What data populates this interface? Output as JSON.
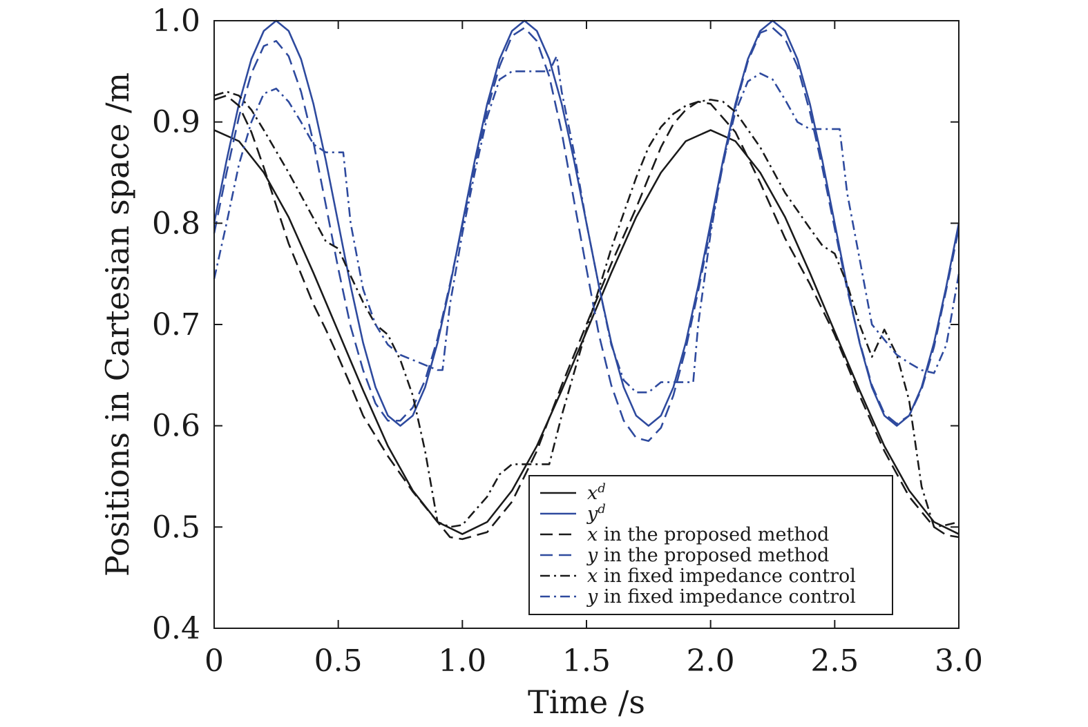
{
  "chart_data": {
    "type": "line",
    "xlabel": "Time /s",
    "ylabel": "Positions in Cartesian space /m",
    "xlim": [
      0,
      3.0
    ],
    "ylim": [
      0.4,
      1.0
    ],
    "x_ticks": [
      "0",
      "0.5",
      "1.0",
      "1.5",
      "2.0",
      "2.5",
      "3.0"
    ],
    "x_tick_values": [
      0,
      0.5,
      1.0,
      1.5,
      2.0,
      2.5,
      3.0
    ],
    "y_ticks": [
      "0.4",
      "0.5",
      "0.6",
      "0.7",
      "0.8",
      "0.9",
      "1.0"
    ],
    "y_tick_values": [
      0.4,
      0.5,
      0.6,
      0.7,
      0.8,
      0.9,
      1.0
    ],
    "grid": false,
    "legend_position": "bottom-right",
    "colors": {
      "black": "#1a1a1a",
      "blue": "#2e4a9e"
    },
    "series": [
      {
        "name": "x^d",
        "legend_var": "x",
        "legend_sup": "d",
        "legend_text": "",
        "color": "#1a1a1a",
        "style": "solid",
        "x": [
          0,
          0.1,
          0.2,
          0.3,
          0.4,
          0.5,
          0.6,
          0.7,
          0.8,
          0.9,
          1.0,
          1.1,
          1.2,
          1.3,
          1.4,
          1.5,
          1.6,
          1.7,
          1.8,
          1.9,
          2.0,
          2.1,
          2.2,
          2.3,
          2.4,
          2.5,
          2.6,
          2.7,
          2.8,
          2.9,
          3.0
        ],
        "y": [
          0.892,
          0.881,
          0.85,
          0.806,
          0.751,
          0.693,
          0.635,
          0.58,
          0.536,
          0.505,
          0.493,
          0.505,
          0.536,
          0.58,
          0.635,
          0.693,
          0.751,
          0.806,
          0.85,
          0.881,
          0.892,
          0.881,
          0.85,
          0.806,
          0.751,
          0.693,
          0.635,
          0.58,
          0.536,
          0.505,
          0.493
        ]
      },
      {
        "name": "y^d",
        "legend_var": "y",
        "legend_sup": "d",
        "legend_text": "",
        "color": "#2e4a9e",
        "style": "solid",
        "x": [
          0,
          0.05,
          0.1,
          0.15,
          0.2,
          0.25,
          0.3,
          0.35,
          0.4,
          0.45,
          0.5,
          0.55,
          0.6,
          0.65,
          0.7,
          0.75,
          0.8,
          0.85,
          0.9,
          0.95,
          1.0,
          1.05,
          1.1,
          1.15,
          1.2,
          1.25,
          1.3,
          1.35,
          1.4,
          1.45,
          1.5,
          1.55,
          1.6,
          1.65,
          1.7,
          1.75,
          1.8,
          1.85,
          1.9,
          1.95,
          2.0,
          2.05,
          2.1,
          2.15,
          2.2,
          2.25,
          2.3,
          2.35,
          2.4,
          2.45,
          2.5,
          2.55,
          2.6,
          2.65,
          2.7,
          2.75,
          2.8,
          2.85,
          2.9,
          2.95,
          3.0
        ],
        "y": [
          0.8,
          0.862,
          0.918,
          0.962,
          0.99,
          1.0,
          0.99,
          0.962,
          0.918,
          0.862,
          0.8,
          0.738,
          0.682,
          0.638,
          0.61,
          0.6,
          0.61,
          0.638,
          0.682,
          0.738,
          0.8,
          0.862,
          0.918,
          0.962,
          0.99,
          1.0,
          0.99,
          0.962,
          0.918,
          0.862,
          0.8,
          0.738,
          0.682,
          0.638,
          0.61,
          0.6,
          0.61,
          0.638,
          0.682,
          0.738,
          0.8,
          0.862,
          0.918,
          0.962,
          0.99,
          1.0,
          0.99,
          0.962,
          0.918,
          0.862,
          0.8,
          0.738,
          0.682,
          0.638,
          0.61,
          0.6,
          0.61,
          0.638,
          0.682,
          0.738,
          0.8
        ]
      },
      {
        "name": "x in the proposed method",
        "legend_var": "x",
        "legend_sup": "",
        "legend_text": " in the proposed method",
        "color": "#1a1a1a",
        "style": "dashed",
        "x": [
          0,
          0.05,
          0.1,
          0.15,
          0.2,
          0.3,
          0.4,
          0.45,
          0.5,
          0.55,
          0.6,
          0.7,
          0.8,
          0.9,
          0.95,
          1.0,
          1.1,
          1.2,
          1.3,
          1.4,
          1.5,
          1.6,
          1.7,
          1.75,
          1.8,
          1.85,
          1.9,
          1.95,
          2.0,
          2.1,
          2.2,
          2.3,
          2.4,
          2.5,
          2.6,
          2.7,
          2.8,
          2.9,
          2.95,
          3.0
        ],
        "y": [
          0.922,
          0.926,
          0.916,
          0.89,
          0.855,
          0.78,
          0.72,
          0.695,
          0.668,
          0.64,
          0.61,
          0.57,
          0.535,
          0.505,
          0.49,
          0.488,
          0.495,
          0.525,
          0.575,
          0.64,
          0.7,
          0.76,
          0.815,
          0.845,
          0.875,
          0.898,
          0.912,
          0.92,
          0.918,
          0.89,
          0.84,
          0.785,
          0.74,
          0.69,
          0.63,
          0.575,
          0.53,
          0.5,
          0.492,
          0.49
        ]
      },
      {
        "name": "y in the proposed method",
        "legend_var": "y",
        "legend_sup": "",
        "legend_text": " in the proposed method",
        "color": "#2e4a9e",
        "style": "dashed",
        "x": [
          0,
          0.05,
          0.1,
          0.15,
          0.2,
          0.25,
          0.3,
          0.35,
          0.4,
          0.45,
          0.5,
          0.55,
          0.6,
          0.65,
          0.7,
          0.75,
          0.8,
          0.85,
          0.9,
          0.95,
          1.0,
          1.05,
          1.1,
          1.15,
          1.2,
          1.25,
          1.3,
          1.35,
          1.4,
          1.45,
          1.5,
          1.55,
          1.6,
          1.65,
          1.7,
          1.75,
          1.8,
          1.85,
          1.9,
          1.95,
          2.0,
          2.05,
          2.1,
          2.15,
          2.2,
          2.25,
          2.3,
          2.35,
          2.4,
          2.45,
          2.5,
          2.55,
          2.6,
          2.65,
          2.7,
          2.75,
          2.8,
          2.85,
          2.9,
          2.95,
          3.0
        ],
        "y": [
          0.79,
          0.85,
          0.905,
          0.948,
          0.975,
          0.98,
          0.965,
          0.93,
          0.88,
          0.818,
          0.755,
          0.698,
          0.655,
          0.622,
          0.605,
          0.605,
          0.618,
          0.645,
          0.686,
          0.74,
          0.798,
          0.858,
          0.912,
          0.955,
          0.985,
          0.993,
          0.98,
          0.945,
          0.89,
          0.822,
          0.755,
          0.69,
          0.64,
          0.605,
          0.588,
          0.585,
          0.598,
          0.63,
          0.676,
          0.733,
          0.795,
          0.858,
          0.915,
          0.96,
          0.988,
          0.993,
          0.982,
          0.955,
          0.91,
          0.855,
          0.795,
          0.735,
          0.683,
          0.64,
          0.612,
          0.602,
          0.61,
          0.636,
          0.678,
          0.735,
          0.795
        ]
      },
      {
        "name": "x in fixed impedance control",
        "legend_var": "x",
        "legend_sup": "",
        "legend_text": " in fixed impedance control",
        "color": "#1a1a1a",
        "style": "dashdot",
        "x": [
          0,
          0.05,
          0.1,
          0.15,
          0.2,
          0.3,
          0.4,
          0.45,
          0.5,
          0.55,
          0.6,
          0.65,
          0.7,
          0.75,
          0.8,
          0.85,
          0.9,
          0.95,
          1.0,
          1.1,
          1.15,
          1.2,
          1.25,
          1.3,
          1.35,
          1.4,
          1.5,
          1.6,
          1.7,
          1.75,
          1.8,
          1.85,
          1.9,
          1.95,
          2.0,
          2.05,
          2.1,
          2.2,
          2.3,
          2.4,
          2.45,
          2.5,
          2.55,
          2.6,
          2.65,
          2.7,
          2.75,
          2.8,
          2.85,
          2.9,
          2.95,
          3.0
        ],
        "y": [
          0.926,
          0.93,
          0.926,
          0.912,
          0.892,
          0.85,
          0.805,
          0.782,
          0.775,
          0.748,
          0.722,
          0.7,
          0.69,
          0.665,
          0.63,
          0.575,
          0.505,
          0.5,
          0.502,
          0.53,
          0.552,
          0.562,
          0.562,
          0.562,
          0.562,
          0.61,
          0.695,
          0.775,
          0.845,
          0.875,
          0.895,
          0.908,
          0.916,
          0.92,
          0.922,
          0.92,
          0.91,
          0.875,
          0.83,
          0.795,
          0.778,
          0.77,
          0.74,
          0.7,
          0.668,
          0.695,
          0.67,
          0.625,
          0.54,
          0.5,
          0.502,
          0.505
        ]
      },
      {
        "name": "y in fixed impedance control",
        "legend_var": "y",
        "legend_sup": "",
        "legend_text": " in fixed impedance control",
        "color": "#2e4a9e",
        "style": "dashdot",
        "x": [
          0,
          0.05,
          0.1,
          0.15,
          0.2,
          0.25,
          0.3,
          0.35,
          0.4,
          0.45,
          0.5,
          0.52,
          0.55,
          0.6,
          0.65,
          0.7,
          0.75,
          0.8,
          0.85,
          0.9,
          0.92,
          0.95,
          1.0,
          1.05,
          1.1,
          1.15,
          1.2,
          1.25,
          1.3,
          1.35,
          1.38,
          1.4,
          1.45,
          1.5,
          1.55,
          1.6,
          1.65,
          1.7,
          1.75,
          1.8,
          1.85,
          1.9,
          1.93,
          1.95,
          2.0,
          2.05,
          2.1,
          2.15,
          2.2,
          2.25,
          2.3,
          2.35,
          2.4,
          2.45,
          2.5,
          2.52,
          2.55,
          2.6,
          2.65,
          2.7,
          2.75,
          2.8,
          2.85,
          2.9,
          2.95,
          3.0
        ],
        "y": [
          0.745,
          0.8,
          0.858,
          0.9,
          0.928,
          0.933,
          0.92,
          0.9,
          0.878,
          0.87,
          0.87,
          0.87,
          0.8,
          0.735,
          0.7,
          0.68,
          0.67,
          0.665,
          0.66,
          0.655,
          0.655,
          0.72,
          0.79,
          0.85,
          0.905,
          0.942,
          0.95,
          0.95,
          0.95,
          0.95,
          0.965,
          0.93,
          0.87,
          0.8,
          0.738,
          0.68,
          0.645,
          0.633,
          0.633,
          0.643,
          0.643,
          0.643,
          0.643,
          0.7,
          0.79,
          0.86,
          0.91,
          0.94,
          0.948,
          0.942,
          0.922,
          0.9,
          0.893,
          0.893,
          0.893,
          0.893,
          0.83,
          0.765,
          0.7,
          0.685,
          0.67,
          0.662,
          0.655,
          0.652,
          0.68,
          0.75
        ]
      }
    ]
  }
}
